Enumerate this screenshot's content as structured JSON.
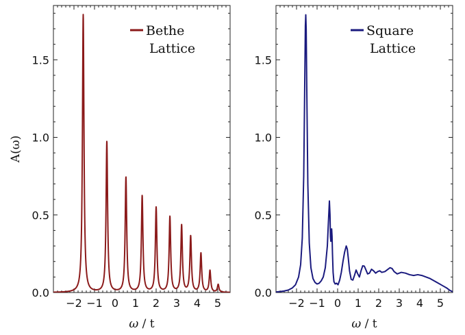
{
  "chart_data": [
    {
      "type": "line",
      "xlabel_main": "ω",
      "xlabel_unit": " / t",
      "ylabel": "A(ω)",
      "xlim": [
        -3.0,
        5.6
      ],
      "ylim": [
        0.0,
        1.85
      ],
      "x_ticks": [
        -2,
        -1,
        0,
        1,
        2,
        3,
        4,
        5
      ],
      "x_tick_labels": [
        "−2",
        "−1",
        "0",
        "1",
        "2",
        "3",
        "4",
        "5"
      ],
      "y_ticks": [
        0.0,
        0.5,
        1.0,
        1.5
      ],
      "y_tick_labels": [
        "0.0",
        "0.5",
        "1.0",
        "1.5"
      ],
      "legend": [
        "Bethe",
        "Lattice"
      ],
      "color": "#8b1a1a",
      "series": [
        {
          "peaks": [
            {
              "x": -1.55,
              "height": 1.79
            },
            {
              "x": -0.4,
              "height": 0.97
            },
            {
              "x": 0.53,
              "height": 0.74
            },
            {
              "x": 1.32,
              "height": 0.62
            },
            {
              "x": 2.0,
              "height": 0.545
            },
            {
              "x": 2.67,
              "height": 0.485
            },
            {
              "x": 3.24,
              "height": 0.43
            },
            {
              "x": 3.68,
              "height": 0.36
            },
            {
              "x": 4.18,
              "height": 0.25
            },
            {
              "x": 4.62,
              "height": 0.14
            },
            {
              "x": 5.02,
              "height": 0.05
            }
          ]
        }
      ]
    },
    {
      "type": "line",
      "xlabel_main": "ω",
      "xlabel_unit": " / t",
      "ylabel": "",
      "xlim": [
        -3.0,
        5.6
      ],
      "ylim": [
        0.0,
        1.85
      ],
      "x_ticks": [
        -2,
        -1,
        0,
        1,
        2,
        3,
        4,
        5
      ],
      "x_tick_labels": [
        "−2",
        "−1",
        "0",
        "1",
        "2",
        "3",
        "4",
        "5"
      ],
      "y_ticks": [
        0.0,
        0.5,
        1.0,
        1.5
      ],
      "y_tick_labels": [
        "0.0",
        "0.5",
        "1.0",
        "1.5"
      ],
      "legend": [
        "Square",
        "Lattice"
      ],
      "color": "#1a1a7e",
      "series": [
        {
          "x": [
            -3.0,
            -2.8,
            -2.6,
            -2.4,
            -2.2,
            -2.05,
            -1.9,
            -1.8,
            -1.72,
            -1.65,
            -1.6,
            -1.57,
            -1.55,
            -1.53,
            -1.5,
            -1.45,
            -1.38,
            -1.3,
            -1.2,
            -1.1,
            -1.0,
            -0.9,
            -0.8,
            -0.7,
            -0.6,
            -0.5,
            -0.45,
            -0.4,
            -0.37,
            -0.35,
            -0.33,
            -0.31,
            -0.29,
            -0.27,
            -0.25,
            -0.22,
            -0.18,
            -0.12,
            -0.05,
            0.02,
            0.1,
            0.18,
            0.26,
            0.34,
            0.42,
            0.47,
            0.52,
            0.58,
            0.66,
            0.74,
            0.82,
            0.9,
            0.98,
            1.06,
            1.14,
            1.22,
            1.3,
            1.38,
            1.46,
            1.55,
            1.65,
            1.75,
            1.85,
            1.95,
            2.05,
            2.15,
            2.3,
            2.45,
            2.55,
            2.65,
            2.75,
            2.9,
            3.1,
            3.3,
            3.5,
            3.7,
            3.9,
            4.1,
            4.3,
            4.5,
            4.7,
            4.9,
            5.1,
            5.3,
            5.45,
            5.6
          ],
          "y": [
            0.004,
            0.006,
            0.01,
            0.016,
            0.03,
            0.05,
            0.1,
            0.18,
            0.35,
            0.75,
            1.35,
            1.72,
            1.79,
            1.7,
            1.3,
            0.7,
            0.32,
            0.16,
            0.09,
            0.065,
            0.055,
            0.06,
            0.075,
            0.1,
            0.16,
            0.3,
            0.45,
            0.59,
            0.5,
            0.36,
            0.33,
            0.36,
            0.41,
            0.36,
            0.25,
            0.13,
            0.07,
            0.055,
            0.06,
            0.05,
            0.08,
            0.13,
            0.2,
            0.26,
            0.3,
            0.28,
            0.22,
            0.14,
            0.085,
            0.08,
            0.11,
            0.145,
            0.12,
            0.1,
            0.14,
            0.172,
            0.17,
            0.145,
            0.12,
            0.125,
            0.15,
            0.14,
            0.125,
            0.135,
            0.14,
            0.13,
            0.135,
            0.15,
            0.16,
            0.155,
            0.135,
            0.12,
            0.13,
            0.125,
            0.115,
            0.11,
            0.115,
            0.11,
            0.1,
            0.09,
            0.075,
            0.06,
            0.045,
            0.03,
            0.015,
            0.005
          ]
        }
      ]
    }
  ]
}
